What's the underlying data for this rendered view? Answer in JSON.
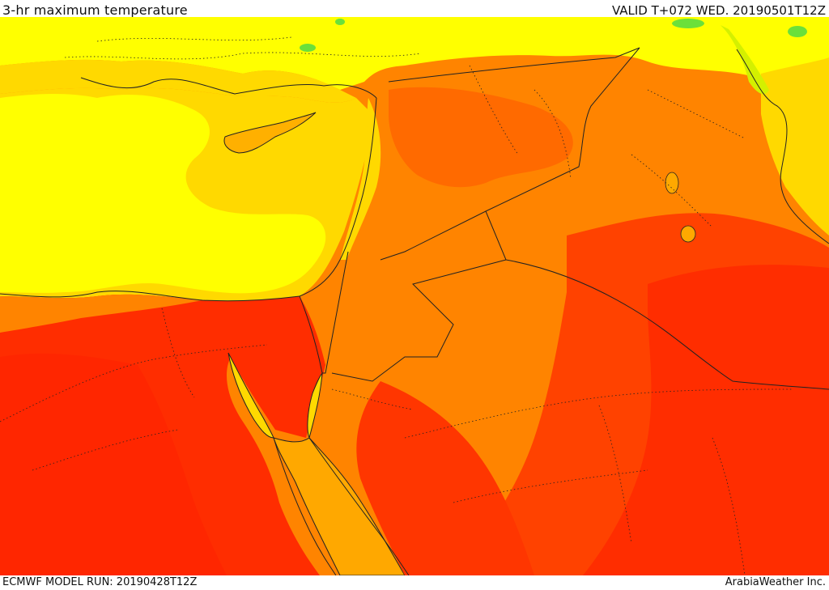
{
  "header": {
    "title": "3-hr maximum temperature",
    "valid": "VALID T+072 WED. 20190501T12Z"
  },
  "footer": {
    "model_run": "ECMWF MODEL RUN: 20190428T12Z",
    "credit": "ArabiaWeather Inc."
  },
  "map": {
    "field": "temperature",
    "palette": {
      "green": "#6be03a",
      "yellow_green": "#d4f000",
      "yellow": "#ffff00",
      "gold": "#ffd900",
      "orange_light": "#ffa800",
      "orange": "#ff8400",
      "orange_red": "#ff5a00",
      "red": "#ff2d00"
    }
  }
}
